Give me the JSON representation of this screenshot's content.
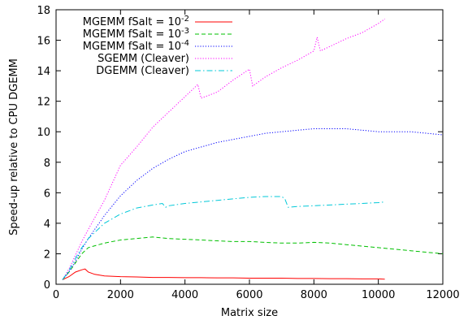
{
  "chart_data": {
    "type": "line",
    "xlabel": "Matrix size",
    "ylabel": "Speed-up relative to CPU DGEMM",
    "xlim": [
      0,
      12000
    ],
    "ylim": [
      0,
      18
    ],
    "xticks": [
      "0",
      "2000",
      "4000",
      "6000",
      "8000",
      "10000",
      "12000"
    ],
    "yticks": [
      "0",
      "2",
      "4",
      "6",
      "8",
      "10",
      "12",
      "14",
      "16",
      "18"
    ],
    "grid": false,
    "legend_position": "top-left",
    "series": [
      {
        "name": "MGEMM fSalt = 10",
        "exponent": "-2",
        "color": "#ff0000",
        "dash": "solid",
        "x": [
          200,
          400,
          600,
          800,
          900,
          1000,
          1200,
          1500,
          2000,
          2500,
          3000,
          3500,
          4000,
          4500,
          5000,
          5500,
          6000,
          6500,
          7000,
          7500,
          8000,
          8500,
          9000,
          9500,
          10000,
          10200
        ],
        "y": [
          0.3,
          0.5,
          0.8,
          0.95,
          1.0,
          0.8,
          0.65,
          0.55,
          0.5,
          0.48,
          0.45,
          0.45,
          0.43,
          0.43,
          0.42,
          0.42,
          0.4,
          0.4,
          0.4,
          0.38,
          0.38,
          0.37,
          0.37,
          0.35,
          0.35,
          0.33
        ]
      },
      {
        "name": "MGEMM fSalt = 10",
        "exponent": "-3",
        "color": "#00c000",
        "dash": "dashed",
        "x": [
          200,
          400,
          600,
          800,
          1000,
          1500,
          2000,
          2500,
          3000,
          3500,
          4000,
          4500,
          5000,
          5500,
          6000,
          6500,
          7000,
          7500,
          8000,
          8500,
          9000,
          9500,
          10000,
          10500,
          11000,
          11500,
          12000
        ],
        "y": [
          0.3,
          0.8,
          1.4,
          2.0,
          2.4,
          2.7,
          2.9,
          3.0,
          3.1,
          3.0,
          2.95,
          2.9,
          2.85,
          2.8,
          2.8,
          2.75,
          2.7,
          2.7,
          2.75,
          2.7,
          2.6,
          2.5,
          2.4,
          2.3,
          2.2,
          2.1,
          2.0
        ]
      },
      {
        "name": "MGEMM fSalt = 10",
        "exponent": "-4",
        "color": "#0000ff",
        "dash": "dotted",
        "x": [
          200,
          400,
          600,
          800,
          1000,
          1500,
          2000,
          2500,
          3000,
          3500,
          4000,
          4500,
          5000,
          5500,
          6000,
          6500,
          7000,
          7500,
          8000,
          8500,
          9000,
          9500,
          10000,
          10500,
          11000,
          11500,
          12000
        ],
        "y": [
          0.3,
          0.8,
          1.5,
          2.3,
          3.0,
          4.5,
          5.8,
          6.8,
          7.6,
          8.2,
          8.7,
          9.0,
          9.3,
          9.5,
          9.7,
          9.9,
          10.0,
          10.1,
          10.2,
          10.2,
          10.2,
          10.1,
          10.0,
          10.0,
          10.0,
          9.9,
          9.8
        ]
      },
      {
        "name": "SGEMM (Cleaver)",
        "color": "#ff00ff",
        "dash": "dotted",
        "x": [
          200,
          400,
          600,
          800,
          1000,
          1500,
          2000,
          2500,
          3000,
          3500,
          4000,
          4400,
          4500,
          5000,
          5500,
          6000,
          6100,
          6500,
          7000,
          7500,
          8000,
          8100,
          8200,
          8500,
          9000,
          9500,
          10000,
          10200
        ],
        "y": [
          0.3,
          1.0,
          1.9,
          2.8,
          3.6,
          5.5,
          7.8,
          9.0,
          10.3,
          11.3,
          12.3,
          13.1,
          12.2,
          12.6,
          13.4,
          14.1,
          13.0,
          13.6,
          14.2,
          14.7,
          15.3,
          16.2,
          15.3,
          15.6,
          16.1,
          16.5,
          17.1,
          17.4
        ]
      },
      {
        "name": "DGEMM (Cleaver)",
        "color": "#00c8d8",
        "dash": "dashdot",
        "x": [
          200,
          400,
          600,
          800,
          1000,
          1500,
          2000,
          2500,
          3000,
          3300,
          3400,
          3500,
          4000,
          4500,
          5000,
          5500,
          6000,
          6500,
          7000,
          7100,
          7200,
          7500,
          8000,
          8500,
          9000,
          9500,
          10000,
          10200
        ],
        "y": [
          0.3,
          0.9,
          1.7,
          2.4,
          3.0,
          4.0,
          4.6,
          5.0,
          5.2,
          5.3,
          5.05,
          5.15,
          5.3,
          5.4,
          5.5,
          5.6,
          5.7,
          5.75,
          5.75,
          5.6,
          5.05,
          5.1,
          5.15,
          5.2,
          5.25,
          5.3,
          5.35,
          5.4
        ]
      }
    ]
  }
}
